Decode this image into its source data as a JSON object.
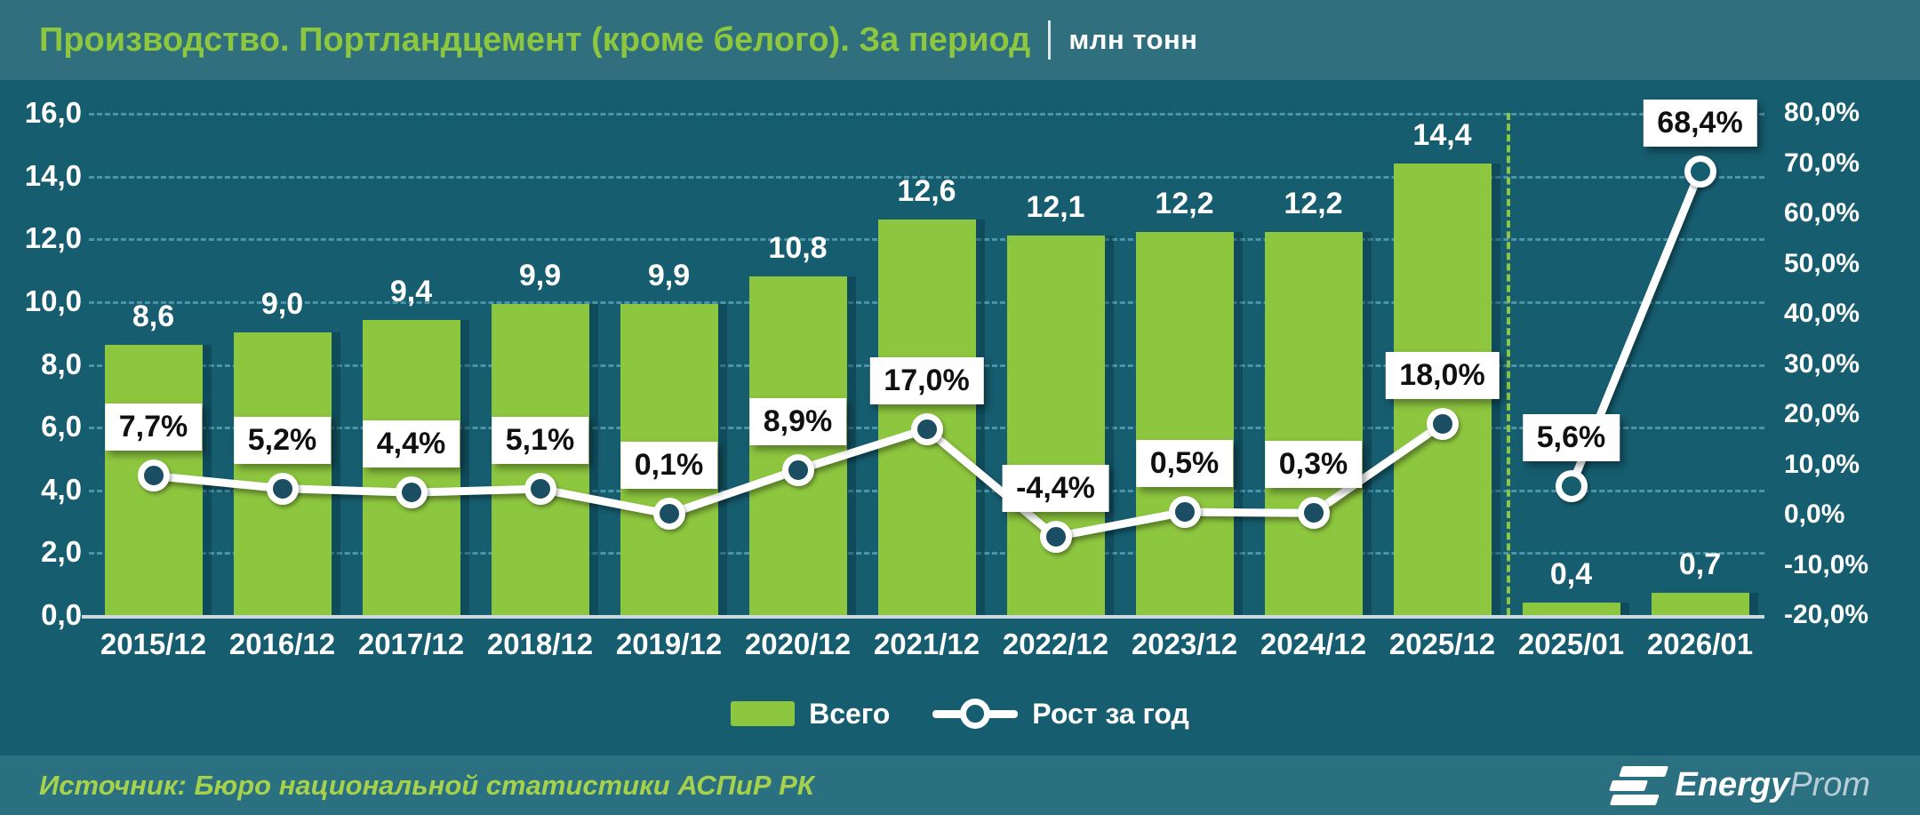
{
  "header": {
    "title": "Производство. Портландцемент (кроме белого). За период",
    "unit": "млн тонн"
  },
  "chart_data": {
    "type": "bar+line",
    "categories": [
      "2015/12",
      "2016/12",
      "2017/12",
      "2018/12",
      "2019/12",
      "2020/12",
      "2021/12",
      "2022/12",
      "2023/12",
      "2024/12",
      "2025/12",
      "2025/01",
      "2026/01"
    ],
    "series": [
      {
        "name": "Всего",
        "type": "bar",
        "axis": "left",
        "values": [
          8.6,
          9.0,
          9.4,
          9.9,
          9.9,
          10.8,
          12.6,
          12.1,
          12.2,
          12.2,
          14.4,
          0.4,
          0.7
        ],
        "labels": [
          "8,6",
          "9,0",
          "9,4",
          "9,9",
          "9,9",
          "10,8",
          "12,6",
          "12,1",
          "12,2",
          "12,2",
          "14,4",
          "0,4",
          "0,7"
        ]
      },
      {
        "name": "Рост за год",
        "type": "line",
        "axis": "right",
        "values": [
          7.7,
          5.2,
          4.4,
          5.1,
          0.1,
          8.9,
          17.0,
          -4.4,
          0.5,
          0.3,
          18.0,
          5.6,
          68.4
        ],
        "labels": [
          "7,7%",
          "5,2%",
          "4,4%",
          "5,1%",
          "0,1%",
          "8,9%",
          "17,0%",
          "-4,4%",
          "0,5%",
          "0,3%",
          "18,0%",
          "5,6%",
          "68,4%"
        ],
        "segments": [
          [
            0,
            10
          ],
          [
            11,
            12
          ]
        ],
        "open_markers": [
          11,
          12
        ]
      }
    ],
    "left_axis": {
      "min": 0,
      "max": 16,
      "tick_values": [
        16,
        14,
        12,
        10,
        8,
        6,
        4,
        2,
        0
      ],
      "tick_labels": [
        "16,0",
        "14,0",
        "12,0",
        "10,0",
        "8,0",
        "6,0",
        "4,0",
        "2,0",
        "0,0"
      ]
    },
    "right_axis": {
      "min": -20,
      "max": 80,
      "tick_values": [
        80,
        70,
        60,
        50,
        40,
        30,
        20,
        10,
        0,
        -10,
        -20
      ],
      "tick_labels": [
        "80,0%",
        "70,0%",
        "60,0%",
        "50,0%",
        "40,0%",
        "30,0%",
        "20,0%",
        "10,0%",
        "0,0%",
        "-10,0%",
        "-20,0%"
      ]
    },
    "separator_after_index": 10,
    "grid": "dashed-horizontal",
    "legend_position": "bottom-center"
  },
  "legend": {
    "bar_label": "Всего",
    "line_label": "Рост за год"
  },
  "footer": {
    "source": "Источник: Бюро национальной статистики АСПиР РК",
    "brand_bold": "Energy",
    "brand_light": "Prom"
  },
  "colors": {
    "accent_green": "#8dc63f",
    "chart_background": "#165d6f",
    "header_background": "#2f6f7e",
    "footer_background": "#2b7080",
    "line": "#ffffff",
    "marker_fill": "#1b4e62",
    "gridline": "#5ca6bc"
  }
}
